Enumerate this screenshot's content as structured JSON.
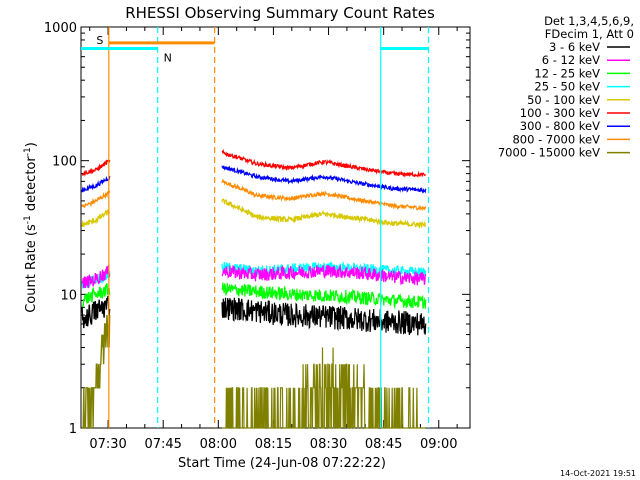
{
  "chart_data": {
    "type": "line",
    "title": "RHESSI Observing Summary Count Rates",
    "xlabel": "Start Time (24-Jun-08 07:22:22)",
    "ylabel_main": "Count Rate (s",
    "ylabel_sup1": "-1",
    "ylabel_mid": " detector",
    "ylabel_sup2": "-1",
    "ylabel_end": ")",
    "y_scale": "log",
    "ylim": [
      1,
      1000
    ],
    "xlim_minutes": [
      -7.37,
      98.5
    ],
    "x_ticks": [
      {
        "label": "07:30",
        "min": 0
      },
      {
        "label": "07:45",
        "min": 15
      },
      {
        "label": "08:00",
        "min": 30
      },
      {
        "label": "08:15",
        "min": 45
      },
      {
        "label": "08:30",
        "min": 60
      },
      {
        "label": "08:45",
        "min": 75
      },
      {
        "label": "09:00",
        "min": 90
      }
    ],
    "y_ticks": [
      {
        "label": "1",
        "value": 1
      },
      {
        "label": "10",
        "value": 10
      },
      {
        "label": "100",
        "value": 100
      },
      {
        "label": "1000",
        "value": 1000
      }
    ],
    "legend": {
      "header1": "Det 1,3,4,5,6,9,",
      "header2": "FDecim 1, Att 0",
      "placement": "right"
    },
    "series": [
      {
        "name": "3 - 6 keV",
        "color": "#000000",
        "pre": [
          6.5,
          7.5,
          8.5
        ],
        "post": [
          8.0,
          7.5,
          7.0,
          6.8,
          6.5,
          6.2,
          6.0
        ],
        "noise": 0.09
      },
      {
        "name": "6 - 12 keV",
        "color": "#ff00ff",
        "pre": [
          12,
          13,
          15
        ],
        "post": [
          15,
          14,
          14.5,
          15,
          14.5,
          13.5,
          13
        ],
        "noise": 0.05
      },
      {
        "name": "12 - 25 keV",
        "color": "#00ff00",
        "pre": [
          9,
          10,
          11
        ],
        "post": [
          11,
          10.5,
          10,
          9.8,
          9.5,
          9.0,
          8.7
        ],
        "noise": 0.05
      },
      {
        "name": "25 - 50 keV",
        "color": "#00ffff",
        "pre": [
          12,
          13,
          14
        ],
        "post": [
          16,
          15,
          15.5,
          16,
          15.5,
          15,
          14.5
        ],
        "noise": 0.04
      },
      {
        "name": "50 - 100 keV",
        "color": "#d8c800",
        "pre": [
          33,
          36,
          42
        ],
        "post": [
          50,
          38,
          36,
          40,
          37,
          34,
          33
        ],
        "noise": 0.02
      },
      {
        "name": "100 - 300 keV",
        "color": "#ff0000",
        "pre": [
          80,
          85,
          100
        ],
        "post": [
          115,
          95,
          88,
          98,
          88,
          80,
          78
        ],
        "noise": 0.015
      },
      {
        "name": "300 - 800 keV",
        "color": "#0000ff",
        "pre": [
          60,
          65,
          75
        ],
        "post": [
          90,
          76,
          70,
          76,
          68,
          62,
          60
        ],
        "noise": 0.015
      },
      {
        "name": "800 - 7000 keV",
        "color": "#ff8c00",
        "pre": [
          45,
          50,
          58
        ],
        "post": [
          70,
          55,
          52,
          57,
          51,
          46,
          44
        ],
        "noise": 0.015
      },
      {
        "name": "7000 - 15000 keV",
        "color": "#808000",
        "pre": [
          1,
          2,
          6
        ],
        "post": [
          1.5,
          1.5,
          1.5,
          2.8,
          2.0,
          1.5,
          1.0
        ],
        "noise": 0.15
      }
    ],
    "flags": [
      {
        "label": "S",
        "color": "#ff8c00",
        "start": 0.2,
        "end": 29,
        "level": 760
      },
      {
        "label": "N",
        "color": "#00ffff",
        "start": -7.37,
        "end": 13.5,
        "level": 690
      },
      {
        "label": "",
        "color": "#00ffff",
        "start": 74.2,
        "end": 87.2,
        "level": 690
      }
    ],
    "vlines": [
      {
        "min": 0.2,
        "color": "#ff8c00",
        "dashed": false
      },
      {
        "min": 13.5,
        "color": "#00ffff",
        "dashed": true
      },
      {
        "min": 29.0,
        "color": "#ff8c00",
        "dashed": true
      },
      {
        "min": 74.2,
        "color": "#00ffff",
        "dashed": false
      },
      {
        "min": 87.2,
        "color": "#00ffff",
        "dashed": true
      }
    ],
    "data_gap_minutes": [
      0.5,
      31.0
    ],
    "series_end_minutes": 86.5,
    "timestamp": "14-Oct-2021 19:51"
  }
}
